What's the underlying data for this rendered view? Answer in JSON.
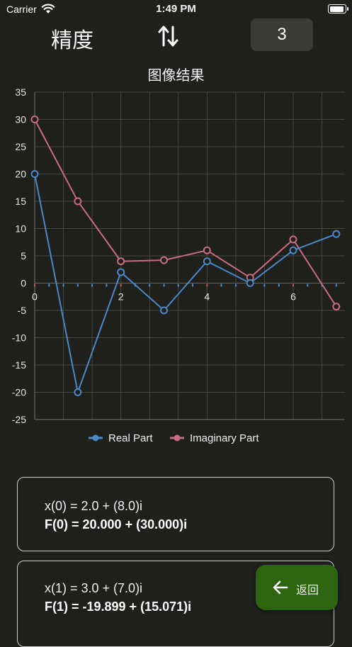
{
  "status_bar": {
    "carrier": "Carrier",
    "time": "1:49 PM",
    "battery_level": 0.95
  },
  "header": {
    "precision_label": "精度",
    "precision_value": "3"
  },
  "chart_title": "图像结果",
  "chart_data": {
    "type": "line",
    "x": [
      0,
      1,
      2,
      3,
      4,
      5,
      6,
      7
    ],
    "series": [
      {
        "name": "Real Part",
        "color": "#4a88c7",
        "values": [
          20,
          -20,
          2,
          -5,
          4,
          0,
          6,
          9
        ]
      },
      {
        "name": "Imaginary Part",
        "color": "#c86b84",
        "values": [
          30,
          15,
          4,
          4.2,
          6,
          1,
          8,
          -4.3
        ]
      }
    ],
    "xlim": [
      0,
      7.2
    ],
    "ylim": [
      -25,
      35
    ],
    "y_ticks": [
      "35",
      "30",
      "25",
      "20",
      "15",
      "10",
      "5",
      "0",
      "-5",
      "-10",
      "-15",
      "-20",
      "-25"
    ],
    "x_ticks": [
      "0",
      "2",
      "4",
      "6"
    ],
    "grid": true,
    "legend_position": "bottom"
  },
  "cards": [
    {
      "x_text": "x(0) =  2.0 + (8.0)i",
      "f_text": "F(0) =  20.000 + (30.000)i"
    },
    {
      "x_text": "x(1) =  3.0 + (7.0)i",
      "f_text": "F(1) = -19.899 + (15.071)i"
    }
  ],
  "back_button": {
    "label": "返回",
    "color": "#2d640f"
  }
}
